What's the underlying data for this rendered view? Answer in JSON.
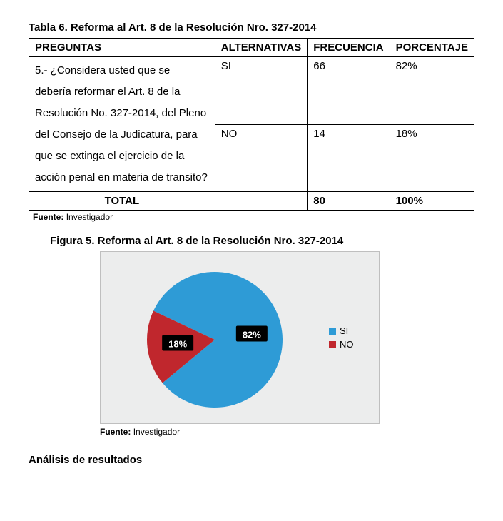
{
  "table": {
    "title": "Tabla 6. Reforma al Art. 8 de la Resolución Nro. 327-2014",
    "headers": {
      "preguntas": "PREGUNTAS",
      "alternativas": "ALTERNATIVAS",
      "frecuencia": "FRECUENCIA",
      "porcentaje": "PORCENTAJE"
    },
    "question": "5.- ¿Considera usted que se debería reformar el Art. 8 de la Resolución No. 327-2014, del Pleno del Consejo de la Judicatura, para que se extinga el ejercicio de la acción penal en materia de transito?",
    "rows": [
      {
        "alt": "SI",
        "freq": "66",
        "pct": "82%"
      },
      {
        "alt": "NO",
        "freq": "14",
        "pct": "18%"
      }
    ],
    "total": {
      "label": "TOTAL",
      "freq": "80",
      "pct": "100%"
    }
  },
  "fuente_label": "Fuente:",
  "fuente_value": "Investigador",
  "figure": {
    "title": "Figura 5. Reforma al Art. 8 de la Resolución Nro. 327-2014",
    "chart": {
      "type": "pie",
      "background_color": "#eceded",
      "border_color": "#bfbfbf",
      "slices": [
        {
          "label": "SI",
          "value": 82,
          "pct_text": "82%",
          "color": "#2e9bd6"
        },
        {
          "label": "NO",
          "value": 18,
          "pct_text": "18%",
          "color": "#c0272d"
        }
      ],
      "label_bg": "#000000",
      "label_text_color": "#ffffff",
      "legend_marker": "■"
    }
  },
  "analysis_heading": "Análisis de resultados"
}
